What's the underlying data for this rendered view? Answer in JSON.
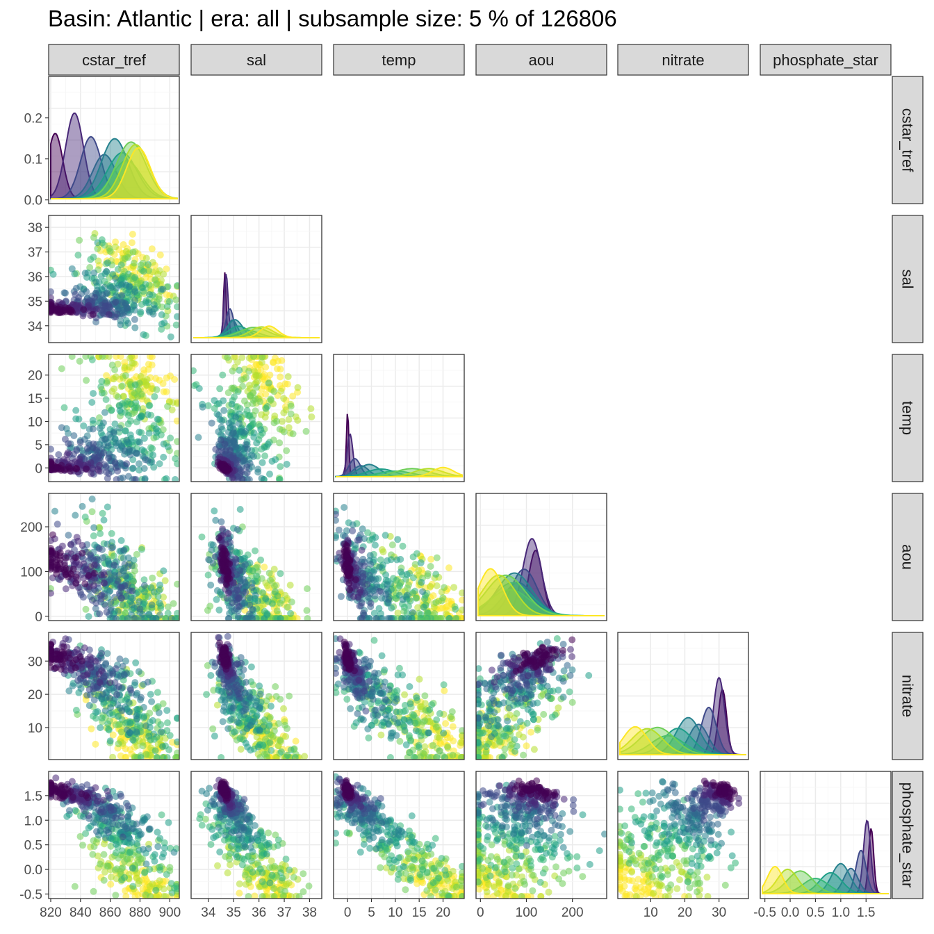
{
  "title": "Basin: Atlantic | era: all | subsample size: 5 % of 126806",
  "colors": {
    "panel_border": "#333333",
    "grid_major": "#ebebeb",
    "grid_minor": "#f5f5f5",
    "strip_fill": "#d9d9d9",
    "palette": [
      "#440154",
      "#482878",
      "#3e4989",
      "#31688e",
      "#26828e",
      "#1f9e89",
      "#35b779",
      "#6ece58",
      "#b5de2b",
      "#fde725"
    ]
  },
  "chart_data": {
    "type": "scatter",
    "layout": "pairs-lower-triangle",
    "variables": [
      "cstar_tref",
      "sal",
      "temp",
      "aou",
      "nitrate",
      "phosphate_star"
    ],
    "strip_labels": [
      "cstar_tref",
      "sal",
      "temp",
      "aou",
      "nitrate",
      "phosphate_star"
    ],
    "axes": {
      "cstar_tref": {
        "range": [
          820,
          905
        ],
        "ticks": [
          "820",
          "840",
          "860",
          "880",
          "900"
        ],
        "tick_values": [
          820,
          840,
          860,
          880,
          900
        ]
      },
      "sal": {
        "range": [
          33.4,
          38.4
        ],
        "ticks": [
          "34",
          "35",
          "36",
          "37",
          "38"
        ],
        "tick_values": [
          34,
          35,
          36,
          37,
          38
        ]
      },
      "temp": {
        "range": [
          -2.5,
          24
        ],
        "ticks": [
          "0",
          "5",
          "10",
          "15",
          "20"
        ],
        "tick_values": [
          0,
          5,
          10,
          15,
          20
        ]
      },
      "aou": {
        "range": [
          -5,
          270
        ],
        "ticks": [
          "0",
          "100",
          "200"
        ],
        "tick_values": [
          0,
          100,
          200
        ]
      },
      "nitrate": {
        "range": [
          1,
          38
        ],
        "ticks": [
          "10",
          "20",
          "30"
        ],
        "tick_values": [
          10,
          20,
          30
        ]
      },
      "phosphate_star": {
        "range": [
          -0.55,
          1.95
        ],
        "ticks": [
          "-0.5",
          "0.0",
          "0.5",
          "1.0",
          "1.5"
        ],
        "tick_values": [
          -0.5,
          0.0,
          0.5,
          1.0,
          1.5
        ]
      }
    },
    "density_axis": {
      "ticks": [
        "0.0",
        "0.1",
        "0.2"
      ],
      "tick_values": [
        0.0,
        0.1,
        0.2
      ],
      "range": [
        -0.004,
        0.296
      ]
    },
    "series": [
      {
        "cstar_tref": 823,
        "sal": 34.65,
        "temp": 0.0,
        "aou": 120,
        "nitrate": 31.0,
        "phosphate_star": 1.6,
        "sd": [
          5,
          0.05,
          0.25,
          15,
          1.2,
          0.05
        ]
      },
      {
        "cstar_tref": 836,
        "sal": 34.7,
        "temp": 0.5,
        "aou": 112,
        "nitrate": 30.0,
        "phosphate_star": 1.52,
        "sd": [
          6,
          0.08,
          0.6,
          20,
          1.6,
          0.07
        ]
      },
      {
        "cstar_tref": 847,
        "sal": 34.85,
        "temp": 1.5,
        "aou": 95,
        "nitrate": 27.0,
        "phosphate_star": 1.4,
        "sd": [
          7,
          0.15,
          1.2,
          28,
          2.2,
          0.1
        ]
      },
      {
        "cstar_tref": 856,
        "sal": 34.95,
        "temp": 2.8,
        "aou": 82,
        "nitrate": 24.0,
        "phosphate_star": 1.2,
        "sd": [
          8,
          0.2,
          1.6,
          32,
          2.8,
          0.14
        ]
      },
      {
        "cstar_tref": 863,
        "sal": 35.05,
        "temp": 4.5,
        "aou": 74,
        "nitrate": 21.0,
        "phosphate_star": 1.0,
        "sd": [
          9,
          0.3,
          2.2,
          38,
          3.5,
          0.18
        ]
      },
      {
        "cstar_tref": 868,
        "sal": 35.2,
        "temp": 7.0,
        "aou": 70,
        "nitrate": 18.0,
        "phosphate_star": 0.8,
        "sd": [
          10,
          0.4,
          3.0,
          42,
          4.2,
          0.22
        ]
      },
      {
        "cstar_tref": 871,
        "sal": 35.5,
        "temp": 10.0,
        "aou": 64,
        "nitrate": 15.0,
        "phosphate_star": 0.5,
        "sd": [
          10,
          0.5,
          3.5,
          44,
          4.8,
          0.25
        ]
      },
      {
        "cstar_tref": 874,
        "sal": 35.8,
        "temp": 13.5,
        "aou": 55,
        "nitrate": 12.0,
        "phosphate_star": 0.2,
        "sd": [
          10,
          0.55,
          3.5,
          42,
          5.0,
          0.25
        ]
      },
      {
        "cstar_tref": 877,
        "sal": 36.1,
        "temp": 17.0,
        "aou": 40,
        "nitrate": 9.0,
        "phosphate_star": -0.05,
        "sd": [
          9,
          0.45,
          3.0,
          36,
          4.5,
          0.2
        ]
      },
      {
        "cstar_tref": 879,
        "sal": 36.4,
        "temp": 20.0,
        "aou": 22,
        "nitrate": 5.5,
        "phosphate_star": -0.3,
        "sd": [
          8,
          0.35,
          2.2,
          26,
          3.5,
          0.15
        ]
      }
    ],
    "grid": true,
    "legend": "none"
  }
}
